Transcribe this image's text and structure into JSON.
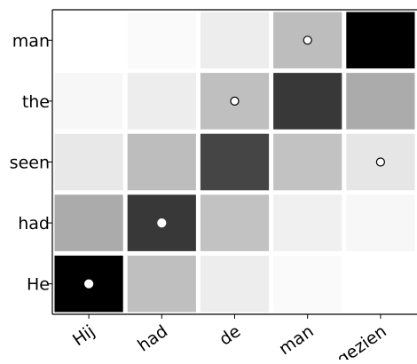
{
  "chart_data": {
    "type": "heatmap",
    "x_categories": [
      "Hij",
      "had",
      "de",
      "man",
      "gezien"
    ],
    "y_categories": [
      "man",
      "the",
      "seen",
      "had",
      "He"
    ],
    "grayscale_note": "cell intensity in [0,1], 1 = black, 0 = white",
    "values": [
      [
        0.0,
        0.02,
        0.07,
        0.26,
        1.0
      ],
      [
        0.03,
        0.07,
        0.25,
        0.78,
        0.33
      ],
      [
        0.09,
        0.26,
        0.73,
        0.24,
        0.1
      ],
      [
        0.33,
        0.78,
        0.24,
        0.06,
        0.03
      ],
      [
        1.0,
        0.25,
        0.07,
        0.02,
        0.0
      ]
    ],
    "markers": [
      {
        "x": "man",
        "y": "man"
      },
      {
        "x": "de",
        "y": "the"
      },
      {
        "x": "gezien",
        "y": "seen"
      },
      {
        "x": "had",
        "y": "had"
      },
      {
        "x": "Hij",
        "y": "He"
      }
    ],
    "grid": false,
    "title": "",
    "xlabel": "",
    "ylabel": ""
  }
}
